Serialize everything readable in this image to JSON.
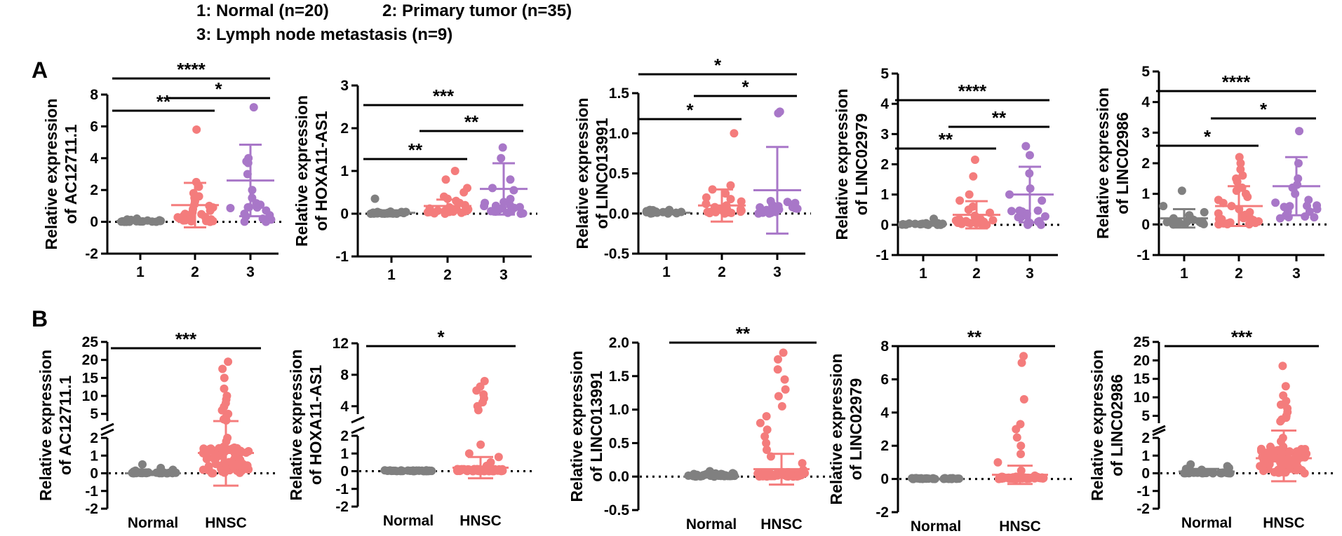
{
  "legend": {
    "line1a": "1: Normal (n=20)",
    "line1b": "2: Primary tumor (n=35)",
    "line2": "3: Lymph node metastasis (n=9)"
  },
  "panels": {
    "A": "A",
    "B": "B"
  },
  "colors": {
    "normal": "#808080",
    "tumor": "#f47c7c",
    "meta": "#a877c8",
    "axis": "#000000"
  },
  "chart_data": [
    {
      "type": "scatter",
      "panel": "A",
      "ylabel": [
        "Relative expression",
        "of AC12711.1"
      ],
      "categories": [
        "1",
        "2",
        "3"
      ],
      "ylim": [
        -2,
        8
      ],
      "yticks": [
        -2,
        0,
        2,
        4,
        6,
        8
      ],
      "series": [
        {
          "mean": 0.05,
          "sd": 0.08,
          "points": [
            0,
            0.05,
            0.1,
            0.15,
            0.2,
            0.02,
            0.08,
            0.12,
            0.0,
            0.06
          ]
        },
        {
          "mean": 1.05,
          "sd": 1.4,
          "points": [
            5.8,
            2.5,
            2.2,
            1.8,
            1.5,
            1.3,
            1.1,
            1.0,
            0.8,
            0.6,
            0.5,
            0.4,
            0.3,
            0.2,
            0.1,
            0.05,
            0.0,
            1.6,
            0.9,
            0.7
          ]
        },
        {
          "mean": 2.6,
          "sd": 2.25,
          "points": [
            7.2,
            4.0,
            3.8,
            3.0,
            2.0,
            1.5,
            0.9,
            0.0,
            3.7
          ]
        }
      ],
      "sig": [
        {
          "from": 0,
          "to": 2,
          "label": "****",
          "y": 9.0
        },
        {
          "from": 0,
          "to": 1,
          "label": "**",
          "y": 6.4
        },
        {
          "from": 1,
          "to": 2,
          "label": "*",
          "y": 7.7
        }
      ]
    },
    {
      "type": "scatter",
      "panel": "A",
      "ylabel": [
        "Relative expression",
        "of  HOXA11-AS1"
      ],
      "categories": [
        "1",
        "2",
        "3"
      ],
      "ylim": [
        -1,
        3
      ],
      "yticks": [
        -1,
        0,
        1,
        2,
        3
      ],
      "series": [
        {
          "mean": 0.02,
          "sd": 0.06,
          "points": [
            0.35,
            0.05,
            0.02,
            0.0,
            0.03,
            0.01,
            0.04,
            0.0
          ]
        },
        {
          "mean": 0.18,
          "sd": 0.15,
          "points": [
            1.0,
            0.8,
            0.6,
            0.5,
            0.4,
            0.35,
            0.3,
            0.25,
            0.2,
            0.15,
            0.1,
            0.05,
            0.02,
            0.0,
            0.12,
            0.08
          ]
        },
        {
          "mean": 0.58,
          "sd": 0.6,
          "points": [
            1.55,
            1.3,
            0.8,
            0.6,
            0.55,
            0.05,
            0.0,
            0.02,
            0.1
          ]
        }
      ],
      "sig": [
        {
          "from": 0,
          "to": 2,
          "label": "***",
          "y": 2.5
        },
        {
          "from": 0,
          "to": 1,
          "label": "**",
          "y": 1.28
        },
        {
          "from": 1,
          "to": 2,
          "label": "**",
          "y": 1.9
        }
      ]
    },
    {
      "type": "scatter",
      "panel": "A",
      "ylabel": [
        "Relative expression",
        "of  LINC013991"
      ],
      "categories": [
        "1",
        "2",
        "3"
      ],
      "ylim": [
        -0.5,
        1.5
      ],
      "yticks": [
        -0.5,
        0.0,
        0.5,
        1.0,
        1.5
      ],
      "series": [
        {
          "mean": 0.01,
          "sd": 0.02,
          "points": [
            0.0,
            0.01,
            0.02,
            0.03,
            0.0,
            0.01
          ]
        },
        {
          "mean": 0.1,
          "sd": 0.2,
          "points": [
            1.0,
            0.35,
            0.3,
            0.25,
            0.2,
            0.18,
            0.15,
            0.1,
            0.08,
            0.05,
            0.02,
            0.0,
            0.12,
            0.06
          ]
        },
        {
          "mean": 0.29,
          "sd": 0.54,
          "points": [
            1.27,
            1.25,
            0.05,
            0.0,
            0.02,
            0.01,
            0.03,
            0.0,
            0.04
          ]
        }
      ],
      "sig": [
        {
          "from": 0,
          "to": 2,
          "label": "*",
          "y": 1.77
        },
        {
          "from": 0,
          "to": 1,
          "label": "*",
          "y": 0.6
        },
        {
          "from": 1,
          "to": 2,
          "label": "*",
          "y": 1.42
        }
      ]
    },
    {
      "type": "scatter",
      "panel": "A",
      "ylabel": [
        "Relative expression",
        "of  LINC02979"
      ],
      "categories": [
        "1",
        "2",
        "3"
      ],
      "ylim": [
        -1,
        5
      ],
      "yticks": [
        -1,
        0,
        1,
        2,
        3,
        4,
        5
      ],
      "series": [
        {
          "mean": 0.02,
          "sd": 0.05,
          "points": [
            0.2,
            0.05,
            0.0,
            0.02,
            0.03,
            0.01
          ]
        },
        {
          "mean": 0.33,
          "sd": 0.45,
          "points": [
            2.15,
            1.6,
            1.0,
            0.8,
            0.6,
            0.5,
            0.4,
            0.3,
            0.2,
            0.15,
            0.1,
            0.05,
            0.0,
            0.25,
            0.12
          ]
        },
        {
          "mean": 1.0,
          "sd": 0.92,
          "points": [
            2.6,
            2.3,
            1.7,
            1.2,
            1.0,
            0.8,
            0.3,
            0.1,
            0.0
          ]
        }
      ],
      "sig": [
        {
          "from": 0,
          "to": 2,
          "label": "****",
          "y": 4.2
        },
        {
          "from": 0,
          "to": 1,
          "label": "**",
          "y": 2.55
        },
        {
          "from": 1,
          "to": 2,
          "label": "**",
          "y": 3.3
        }
      ]
    },
    {
      "type": "scatter",
      "panel": "A",
      "ylabel": [
        "Relative expression",
        "of  LINC02986"
      ],
      "categories": [
        "1",
        "2",
        "3"
      ],
      "ylim": [
        -1,
        5
      ],
      "yticks": [
        -1,
        0,
        1,
        2,
        3,
        4,
        5
      ],
      "series": [
        {
          "mean": 0.2,
          "sd": 0.3,
          "points": [
            1.1,
            0.6,
            0.4,
            0.3,
            0.2,
            0.1,
            0.05,
            0.0,
            0.15,
            0.25
          ]
        },
        {
          "mean": 0.6,
          "sd": 0.65,
          "points": [
            2.2,
            2.0,
            1.8,
            1.6,
            1.4,
            1.2,
            1.0,
            0.9,
            0.8,
            0.7,
            0.6,
            0.5,
            0.4,
            0.3,
            0.2,
            0.1,
            0.05,
            1.1,
            1.5
          ]
        },
        {
          "mean": 1.25,
          "sd": 0.95,
          "points": [
            3.05,
            2.0,
            1.5,
            1.3,
            1.2,
            0.8,
            0.5,
            0.2,
            1.0
          ]
        }
      ],
      "sig": [
        {
          "from": 0,
          "to": 2,
          "label": "****",
          "y": 4.5
        },
        {
          "from": 0,
          "to": 1,
          "label": "*",
          "y": 2.6
        },
        {
          "from": 1,
          "to": 2,
          "label": "*",
          "y": 3.55
        }
      ]
    },
    {
      "type": "scatter",
      "panel": "B",
      "ylabel": [
        "Relative expression",
        "of AC12711.1"
      ],
      "categories": [
        "Normal",
        "HNSC"
      ],
      "broken": true,
      "lower": {
        "ylim": [
          -2,
          2
        ],
        "yticks": [
          -2,
          -1,
          0,
          1,
          2
        ]
      },
      "upper": {
        "ylim": [
          3,
          25
        ],
        "yticks": [
          5,
          10,
          15,
          20,
          25
        ]
      },
      "series": [
        {
          "mean": 0.0,
          "sd": 0.1,
          "points": [
            0.5,
            0.3,
            0.2,
            0.1,
            0.05,
            0.0,
            0.15,
            0.02
          ]
        },
        {
          "mean": 1.15,
          "sd": 1.85,
          "points": [
            19.5,
            17.5,
            15.0,
            12.0,
            10.0,
            9.0,
            8.0,
            7.0,
            6.0,
            5.0,
            4.0,
            3.5,
            3.2,
            2.0,
            1.8,
            1.5,
            1.2,
            1.0,
            0.8,
            0.6,
            0.4,
            0.2,
            0.0
          ]
        }
      ],
      "sig": [
        {
          "from": 0,
          "to": 1,
          "label": "***",
          "y": 24.0
        }
      ]
    },
    {
      "type": "scatter",
      "panel": "B",
      "ylabel": [
        "Relative expression",
        "of  HOXA11-AS1"
      ],
      "categories": [
        "Normal",
        "HNSC"
      ],
      "broken": true,
      "lower": {
        "ylim": [
          -2,
          2
        ],
        "yticks": [
          -2,
          -1,
          0,
          1,
          2
        ]
      },
      "upper": {
        "ylim": [
          3,
          12
        ],
        "yticks": [
          4,
          8,
          12
        ]
      },
      "series": [
        {
          "mean": 0.0,
          "sd": 0.02,
          "points": [
            0.02,
            0.0,
            0.01,
            0.03
          ]
        },
        {
          "mean": 0.2,
          "sd": 0.6,
          "points": [
            7.2,
            6.5,
            6.0,
            5.5,
            5.0,
            4.5,
            4.0,
            3.5,
            1.5,
            1.0,
            0.8,
            0.5,
            0.3,
            0.1,
            0.0
          ]
        }
      ],
      "sig": [
        {
          "from": 0,
          "to": 1,
          "label": "*",
          "y": 11.6
        }
      ]
    },
    {
      "type": "scatter",
      "panel": "B",
      "ylabel": [
        "Relative expression",
        "of  LINC013991"
      ],
      "categories": [
        "Normal",
        "HNSC"
      ],
      "ylim": [
        -0.5,
        2.0
      ],
      "yticks": [
        -0.5,
        0.0,
        0.5,
        1.0,
        1.5,
        2.0
      ],
      "series": [
        {
          "mean": 0.0,
          "sd": 0.01,
          "points": [
            0.08,
            0.05,
            0.02,
            0.01,
            0.0
          ]
        },
        {
          "mean": 0.11,
          "sd": 0.23,
          "points": [
            1.85,
            1.75,
            1.6,
            1.45,
            1.3,
            1.2,
            1.05,
            0.9,
            0.8,
            0.7,
            0.6,
            0.5,
            0.4,
            0.3,
            0.2,
            0.1,
            0.05,
            0.0
          ]
        }
      ],
      "sig": [
        {
          "from": 0,
          "to": 1,
          "label": "**",
          "y": 2.0
        }
      ]
    },
    {
      "type": "scatter",
      "panel": "B",
      "ylabel": [
        "Relative expression",
        "of  LINC02979"
      ],
      "categories": [
        "Normal",
        "HNSC"
      ],
      "ylim": [
        -2,
        8
      ],
      "yticks": [
        -2,
        0,
        2,
        4,
        6,
        8
      ],
      "series": [
        {
          "mean": 0.0,
          "sd": 0.02,
          "points": [
            0.05,
            0.0,
            0.02
          ]
        },
        {
          "mean": 0.25,
          "sd": 0.55,
          "points": [
            7.4,
            7.0,
            4.8,
            3.3,
            3.0,
            2.5,
            2.0,
            1.5,
            1.0,
            0.5,
            0.2,
            0.0
          ]
        }
      ],
      "sig": [
        {
          "from": 0,
          "to": 1,
          "label": "**",
          "y": 7.8
        }
      ]
    },
    {
      "type": "scatter",
      "panel": "B",
      "ylabel": [
        "Relative expression",
        "of  LINC02986"
      ],
      "categories": [
        "Normal",
        "HNSC"
      ],
      "broken": true,
      "lower": {
        "ylim": [
          -2,
          2
        ],
        "yticks": [
          -2,
          -1,
          0,
          1,
          2
        ]
      },
      "upper": {
        "ylim": [
          3,
          25
        ],
        "yticks": [
          5,
          10,
          15,
          20,
          25
        ]
      },
      "series": [
        {
          "mean": 0.1,
          "sd": 0.15,
          "points": [
            0.5,
            0.4,
            0.3,
            0.2,
            0.1,
            0.0,
            0.25
          ]
        },
        {
          "mean": 0.85,
          "sd": 1.3,
          "points": [
            18.5,
            13.0,
            10.5,
            9.0,
            8.0,
            7.0,
            6.0,
            5.0,
            4.5,
            4.0,
            3.5,
            2.0,
            1.8,
            1.5,
            1.2,
            1.0,
            0.8,
            0.5,
            0.2,
            0.0
          ]
        }
      ],
      "sig": [
        {
          "from": 0,
          "to": 1,
          "label": "***",
          "y": 24.5
        }
      ]
    }
  ]
}
